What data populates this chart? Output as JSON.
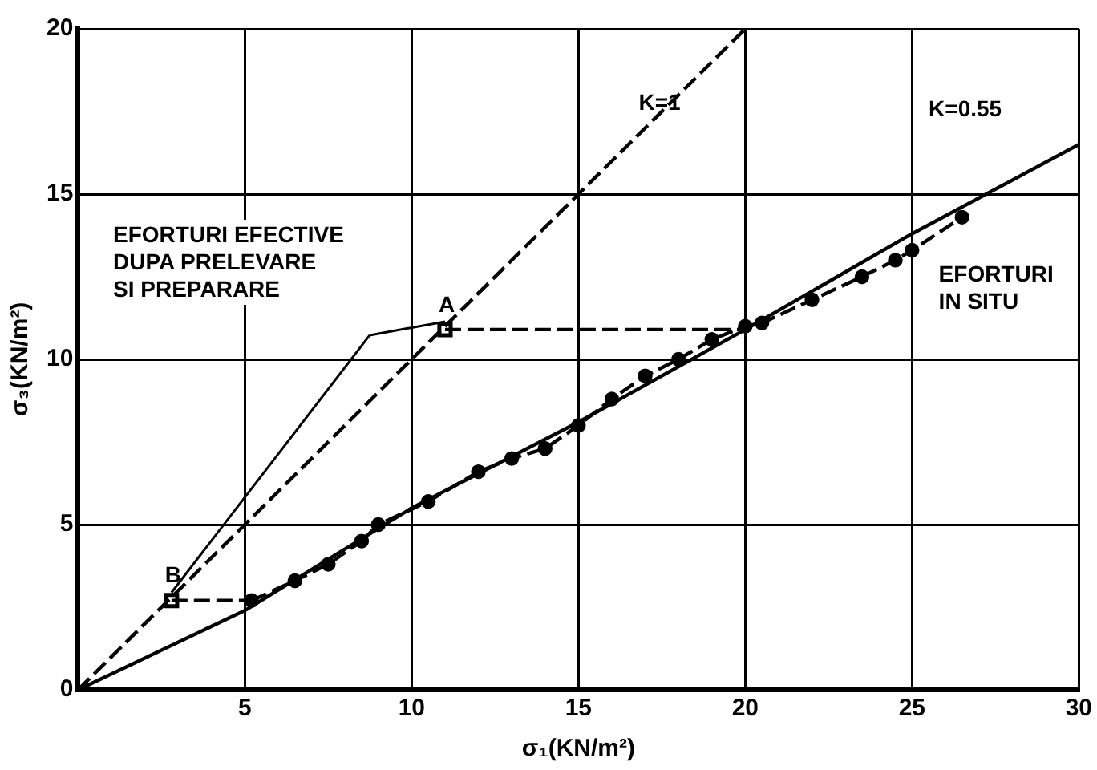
{
  "chart_data": {
    "type": "line",
    "xlabel": "σ₁(KN/m²)",
    "ylabel": "σ₃(KN/m²)",
    "xlim": [
      0,
      30
    ],
    "xticks": [
      {
        "value": 0,
        "label": null
      },
      5,
      10,
      15,
      20,
      25,
      30
    ],
    "ylim": [
      0,
      20
    ],
    "yticks": [
      0,
      5,
      10,
      15,
      20
    ],
    "grid": true,
    "legend": false,
    "series": [
      {
        "color": "#000000",
        "line_style": "dashed",
        "marker": "none",
        "x": [
          0,
          20
        ],
        "values": [
          0,
          20
        ]
      },
      {
        "color": "#000000",
        "line_style": "solid",
        "marker": "none",
        "x": [
          0,
          5,
          10,
          15,
          20,
          25,
          30
        ],
        "values": [
          0,
          2.4,
          5.5,
          8.1,
          10.9,
          13.8,
          16.5
        ]
      },
      {
        "color": "#000000",
        "line_style": "dashed",
        "marker": "circle",
        "x": [
          5.2,
          6.5,
          7.5,
          8.5,
          9,
          10.5,
          12,
          13,
          14,
          15,
          16,
          17,
          18,
          19,
          20,
          20.5,
          22,
          23.5,
          24.5,
          25,
          26.5
        ],
        "values": [
          2.7,
          3.3,
          3.8,
          4.5,
          5,
          5.7,
          6.6,
          7,
          7.3,
          8,
          8.8,
          9.5,
          10,
          10.6,
          11,
          11.1,
          11.8,
          12.5,
          13,
          13.3,
          14.3
        ]
      },
      {
        "color": "#000000",
        "line_style": "dashed",
        "marker": "none",
        "x": [
          2.8,
          5.2
        ],
        "values": [
          2.7,
          2.7
        ]
      },
      {
        "color": "#000000",
        "line_style": "dashed",
        "marker": "none",
        "x": [
          11,
          20
        ],
        "values": [
          10.9,
          10.9
        ]
      },
      {
        "type": "scatter",
        "color": "#000000",
        "marker": "square",
        "x": [
          11,
          2.8
        ],
        "values": [
          10.9,
          2.7
        ]
      }
    ],
    "annotations": [
      "EFORTURI EFECTIVE\nDUPA PRELEVARE\nSI PREPARARE",
      {
        "text": "A",
        "x": 11,
        "y": 10.9
      },
      {
        "text": "B",
        "x": 2.8,
        "y": 2.7
      },
      {
        "text": "K=1",
        "x": 17,
        "y": 17
      },
      "K=0.55",
      "EFORTURI\nIN SITU"
    ]
  }
}
